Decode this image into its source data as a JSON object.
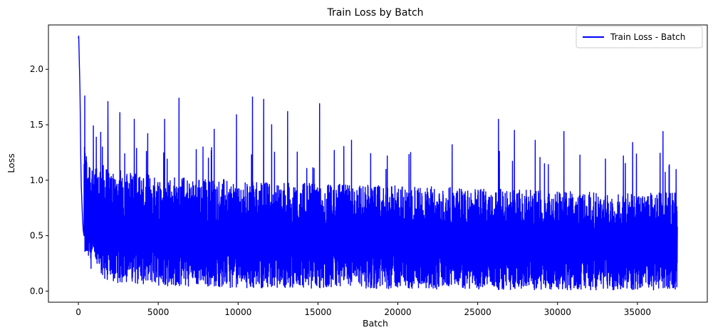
{
  "chart_data": {
    "type": "line",
    "title": "Train Loss by Batch",
    "xlabel": "Batch",
    "ylabel": "Loss",
    "xlim": [
      -1875,
      39375
    ],
    "ylim": [
      -0.1,
      2.4
    ],
    "xticks": [
      0,
      5000,
      10000,
      15000,
      20000,
      25000,
      30000,
      35000
    ],
    "xtick_labels": [
      "0",
      "5000",
      "10000",
      "15000",
      "20000",
      "25000",
      "30000",
      "35000"
    ],
    "yticks": [
      0.0,
      0.5,
      1.0,
      1.5,
      2.0
    ],
    "ytick_labels": [
      "0.0",
      "0.5",
      "1.0",
      "1.5",
      "2.0"
    ],
    "grid": false,
    "legend": {
      "position": "top-right",
      "entries": [
        "Train Loss - Batch"
      ]
    },
    "series": [
      {
        "name": "Train Loss - Batch",
        "color": "#0000ff",
        "x_range": [
          0,
          37500
        ],
        "initial_points": [
          [
            0,
            2.28
          ],
          [
            20,
            2.3
          ],
          [
            40,
            2.2
          ],
          [
            60,
            2.05
          ],
          [
            80,
            1.95
          ],
          [
            100,
            1.8
          ],
          [
            120,
            1.6
          ],
          [
            150,
            1.2
          ],
          [
            180,
            0.95
          ],
          [
            220,
            0.8
          ],
          [
            260,
            0.65
          ],
          [
            300,
            0.55
          ],
          [
            350,
            0.5
          ]
        ],
        "envelope_upper": [
          [
            400,
            1.3
          ],
          [
            1000,
            1.2
          ],
          [
            2000,
            1.1
          ],
          [
            5000,
            1.05
          ],
          [
            10000,
            1.0
          ],
          [
            15000,
            0.97
          ],
          [
            20000,
            0.95
          ],
          [
            25000,
            0.93
          ],
          [
            30000,
            0.9
          ],
          [
            35000,
            0.88
          ],
          [
            37500,
            0.9
          ]
        ],
        "envelope_lower": [
          [
            400,
            0.3
          ],
          [
            1000,
            0.15
          ],
          [
            2000,
            0.08
          ],
          [
            5000,
            0.05
          ],
          [
            10000,
            0.03
          ],
          [
            20000,
            0.02
          ],
          [
            30000,
            0.01
          ],
          [
            37500,
            0.01
          ]
        ],
        "peaks": [
          [
            300,
            1.61
          ],
          [
            400,
            1.76
          ],
          [
            1500,
            1.3
          ],
          [
            1850,
            1.71
          ],
          [
            2600,
            1.61
          ],
          [
            3500,
            1.55
          ],
          [
            5400,
            1.55
          ],
          [
            6300,
            1.74
          ],
          [
            7800,
            1.3
          ],
          [
            8500,
            1.46
          ],
          [
            9900,
            1.59
          ],
          [
            10900,
            1.75
          ],
          [
            11600,
            1.73
          ],
          [
            12100,
            1.5
          ],
          [
            13100,
            1.62
          ],
          [
            15100,
            1.69
          ],
          [
            17100,
            1.36
          ],
          [
            18300,
            1.24
          ],
          [
            20800,
            1.25
          ],
          [
            23400,
            1.32
          ],
          [
            26300,
            1.55
          ],
          [
            27300,
            1.45
          ],
          [
            28600,
            1.36
          ],
          [
            30400,
            1.44
          ],
          [
            34700,
            1.34
          ],
          [
            36600,
            1.44
          ],
          [
            37000,
            1.14
          ]
        ],
        "last_value": 0.58
      }
    ]
  }
}
